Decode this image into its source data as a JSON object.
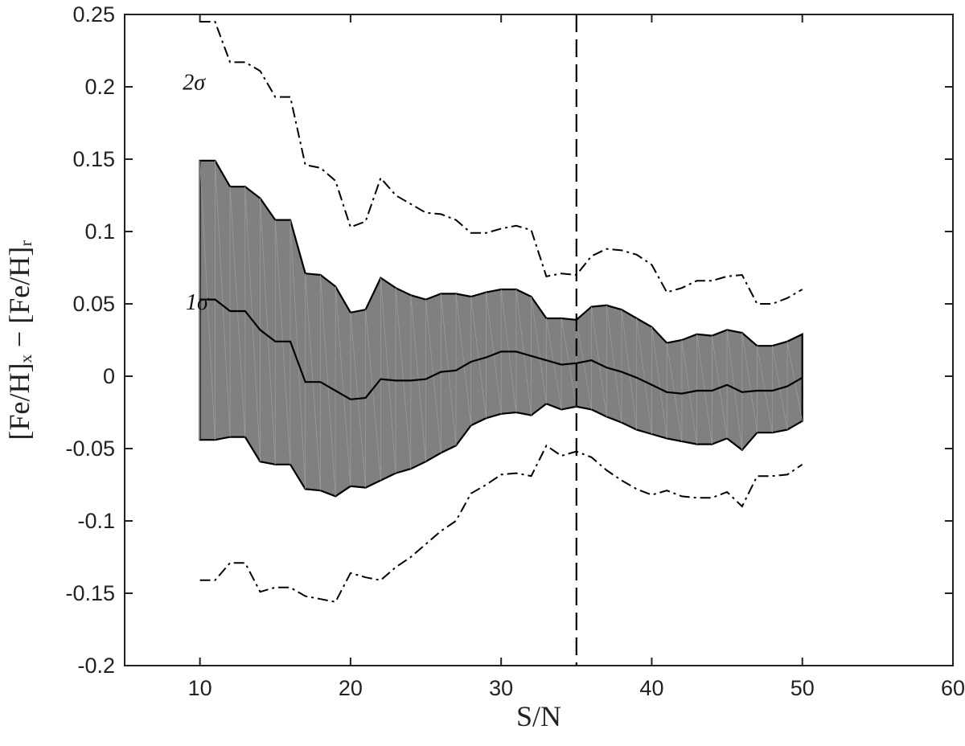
{
  "chart_data": {
    "type": "area",
    "xlabel": "S/N",
    "ylabel": "[Fe/H]ₓ − [Fe/H]ᵣ",
    "xlim": [
      5,
      60
    ],
    "ylim": [
      -0.2,
      0.25
    ],
    "xticks": [
      10,
      20,
      30,
      40,
      50,
      60
    ],
    "yticks": [
      -0.2,
      -0.15,
      -0.1,
      -0.05,
      0,
      0.05,
      0.1,
      0.15,
      0.2,
      0.25
    ],
    "xtick_labels": [
      "10",
      "20",
      "30",
      "40",
      "50",
      "60"
    ],
    "ytick_labels": [
      "-0.2",
      "-0.15",
      "-0.1",
      "-0.05",
      "0",
      "0.05",
      "0.1",
      "0.15",
      "0.2",
      "0.25"
    ],
    "grid": false,
    "x": [
      10,
      11,
      12,
      13,
      14,
      15,
      16,
      17,
      18,
      19,
      20,
      21,
      22,
      23,
      24,
      25,
      26,
      27,
      28,
      29,
      30,
      31,
      32,
      33,
      34,
      35,
      36,
      37,
      38,
      39,
      40,
      41,
      42,
      43,
      44,
      45,
      46,
      47,
      48,
      49,
      50
    ],
    "series": [
      {
        "role": "1sigma-upper",
        "values": [
          0.149,
          0.149,
          0.131,
          0.131,
          0.123,
          0.108,
          0.108,
          0.071,
          0.07,
          0.062,
          0.044,
          0.046,
          0.068,
          0.061,
          0.056,
          0.053,
          0.057,
          0.057,
          0.055,
          0.058,
          0.06,
          0.06,
          0.055,
          0.04,
          0.04,
          0.039,
          0.048,
          0.049,
          0.046,
          0.04,
          0.034,
          0.023,
          0.025,
          0.029,
          0.028,
          0.032,
          0.03,
          0.021,
          0.021,
          0.024,
          0.029
        ]
      },
      {
        "role": "mean",
        "values": [
          0.053,
          0.053,
          0.045,
          0.045,
          0.032,
          0.024,
          0.024,
          -0.004,
          -0.004,
          -0.01,
          -0.016,
          -0.015,
          -0.002,
          -0.003,
          -0.003,
          -0.002,
          0.003,
          0.004,
          0.01,
          0.013,
          0.017,
          0.017,
          0.014,
          0.011,
          0.008,
          0.009,
          0.011,
          0.006,
          0.003,
          -0.001,
          -0.006,
          -0.011,
          -0.012,
          -0.01,
          -0.01,
          -0.006,
          -0.011,
          -0.01,
          -0.01,
          -0.007,
          -0.001
        ]
      },
      {
        "role": "1sigma-lower",
        "values": [
          -0.044,
          -0.044,
          -0.042,
          -0.042,
          -0.059,
          -0.061,
          -0.061,
          -0.078,
          -0.079,
          -0.083,
          -0.076,
          -0.077,
          -0.072,
          -0.067,
          -0.064,
          -0.059,
          -0.053,
          -0.048,
          -0.034,
          -0.029,
          -0.026,
          -0.025,
          -0.027,
          -0.019,
          -0.023,
          -0.021,
          -0.023,
          -0.028,
          -0.032,
          -0.037,
          -0.04,
          -0.043,
          -0.045,
          -0.047,
          -0.047,
          -0.043,
          -0.051,
          -0.039,
          -0.039,
          -0.037,
          -0.031
        ]
      },
      {
        "role": "2sigma-upper",
        "values": [
          0.245,
          0.245,
          0.217,
          0.217,
          0.211,
          0.193,
          0.193,
          0.146,
          0.144,
          0.135,
          0.103,
          0.107,
          0.137,
          0.125,
          0.119,
          0.113,
          0.112,
          0.108,
          0.099,
          0.099,
          0.102,
          0.104,
          0.101,
          0.069,
          0.071,
          0.07,
          0.083,
          0.088,
          0.087,
          0.084,
          0.077,
          0.058,
          0.061,
          0.066,
          0.066,
          0.069,
          0.07,
          0.05,
          0.05,
          0.054,
          0.06
        ]
      },
      {
        "role": "2sigma-lower",
        "values": [
          -0.141,
          -0.141,
          -0.129,
          -0.129,
          -0.149,
          -0.146,
          -0.146,
          -0.152,
          -0.154,
          -0.156,
          -0.136,
          -0.139,
          -0.141,
          -0.132,
          -0.125,
          -0.116,
          -0.107,
          -0.1,
          -0.081,
          -0.075,
          -0.068,
          -0.067,
          -0.069,
          -0.048,
          -0.055,
          -0.052,
          -0.056,
          -0.065,
          -0.072,
          -0.078,
          -0.082,
          -0.079,
          -0.083,
          -0.084,
          -0.084,
          -0.08,
          -0.09,
          -0.069,
          -0.069,
          -0.068,
          -0.061
        ]
      }
    ],
    "reference_line": {
      "x": 35,
      "style": "dashed"
    },
    "annotations": [
      {
        "text": "2σ",
        "x": 9.6,
        "y": 0.198
      },
      {
        "text": "1σ",
        "x": 9.8,
        "y": 0.046
      }
    ],
    "colors": {
      "band": "#808080",
      "line": "#000000",
      "axis": "#222222"
    }
  }
}
